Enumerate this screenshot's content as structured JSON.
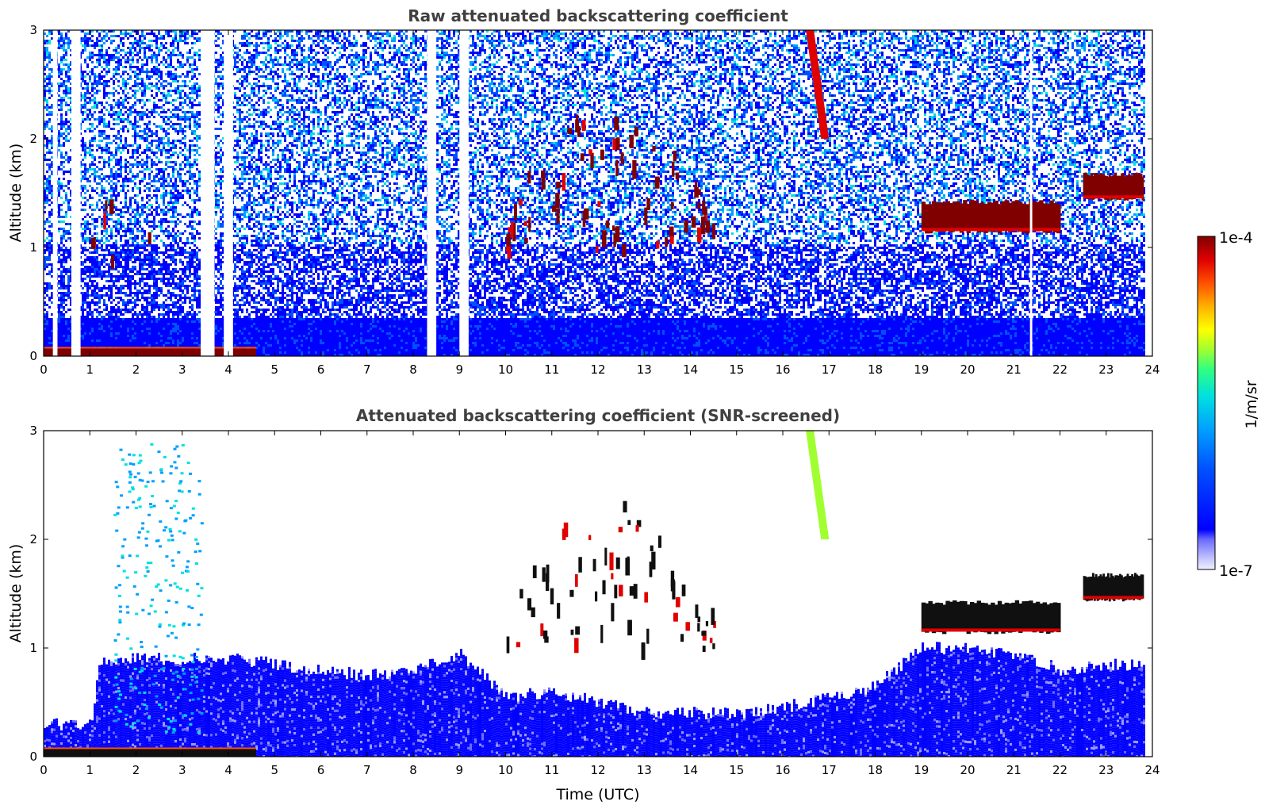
{
  "colors": {
    "colormap": [
      "#0000ff",
      "#0050ff",
      "#00a0ff",
      "#00e0e0",
      "#30ff80",
      "#a0ff30",
      "#ffff00",
      "#ffb000",
      "#ff5000",
      "#e00000",
      "#800000"
    ],
    "colormap_low_tint": [
      "#f0f0ff",
      "#c8c8ff",
      "#9a9aff",
      "#6a6aff"
    ],
    "cloud_core": "#101010",
    "axes": "#000000",
    "title_text": "#404040"
  },
  "colorbar": {
    "label": "1/m/sr",
    "max_label": "1e-4",
    "min_label": "1e-7",
    "scale": "log",
    "range": [
      1e-07,
      0.0001
    ]
  },
  "chart_data": [
    {
      "type": "heatmap",
      "title": "Raw attenuated backscattering coefficient",
      "xlabel": "",
      "ylabel": "Altitude (km)",
      "xlim": [
        0,
        24
      ],
      "ylim": [
        0,
        3
      ],
      "x_ticks": [
        "0",
        "1",
        "2",
        "3",
        "4",
        "5",
        "6",
        "7",
        "8",
        "9",
        "10",
        "11",
        "12",
        "13",
        "14",
        "15",
        "16",
        "17",
        "18",
        "19",
        "20",
        "21",
        "22",
        "23",
        "24"
      ],
      "y_ticks": [
        "0",
        "1",
        "2",
        "3"
      ],
      "data_end_time": 23.8,
      "grid": false,
      "background_noise_level": "high",
      "features": [
        {
          "kind": "surface_layer",
          "x": [
            0.0,
            4.6
          ],
          "y": [
            0.0,
            0.07
          ],
          "level": "high"
        },
        {
          "kind": "cloud",
          "x": [
            19.0,
            22.0
          ],
          "y": [
            1.15,
            1.42
          ],
          "level": "high"
        },
        {
          "kind": "cloud",
          "x": [
            22.5,
            23.8
          ],
          "y": [
            1.45,
            1.67
          ],
          "level": "high"
        },
        {
          "kind": "cloud_fragments",
          "x": [
            10.0,
            14.5
          ],
          "y": [
            1.0,
            2.4
          ],
          "level": "high"
        },
        {
          "kind": "fall_streak",
          "x": [
            16.5,
            17.0
          ],
          "y": [
            2.0,
            3.0
          ],
          "level": "high"
        },
        {
          "kind": "small_clouds",
          "x": [
            0.9,
            2.4
          ],
          "y": [
            0.9,
            1.6
          ],
          "level": "high"
        },
        {
          "kind": "no_signal_columns",
          "x": [
            [
              0.2,
              0.3
            ],
            [
              0.6,
              0.8
            ],
            [
              3.4,
              3.7
            ],
            [
              3.9,
              4.1
            ],
            [
              8.3,
              8.5
            ],
            [
              9.0,
              9.2
            ],
            [
              21.35,
              21.4
            ]
          ]
        }
      ]
    },
    {
      "type": "heatmap",
      "title": "Attenuated backscattering coefficient (SNR-screened)",
      "xlabel": "Time (UTC)",
      "ylabel": "Altitude (km)",
      "xlim": [
        0,
        24
      ],
      "ylim": [
        0,
        3
      ],
      "x_ticks": [
        "0",
        "1",
        "2",
        "3",
        "4",
        "5",
        "6",
        "7",
        "8",
        "9",
        "10",
        "11",
        "12",
        "13",
        "14",
        "15",
        "16",
        "17",
        "18",
        "19",
        "20",
        "21",
        "22",
        "23",
        "24"
      ],
      "y_ticks": [
        "0",
        "1",
        "2",
        "3"
      ],
      "data_end_time": 23.8,
      "grid": false,
      "background_noise_level": "screened",
      "boundary_layer_top_km": [
        [
          0,
          0.3
        ],
        [
          1,
          0.3
        ],
        [
          1.2,
          0.9
        ],
        [
          4.2,
          0.9
        ],
        [
          5,
          0.85
        ],
        [
          6,
          0.8
        ],
        [
          7,
          0.75
        ],
        [
          8,
          0.78
        ],
        [
          9,
          0.95
        ],
        [
          10,
          0.55
        ],
        [
          11,
          0.6
        ],
        [
          12,
          0.5
        ],
        [
          13,
          0.4
        ],
        [
          14,
          0.4
        ],
        [
          15,
          0.4
        ],
        [
          16,
          0.45
        ],
        [
          17,
          0.55
        ],
        [
          18,
          0.65
        ],
        [
          19,
          1.0
        ],
        [
          20,
          1.0
        ],
        [
          21,
          0.95
        ],
        [
          22,
          0.8
        ],
        [
          23,
          0.85
        ],
        [
          23.8,
          0.85
        ]
      ],
      "features": [
        {
          "kind": "surface_layer",
          "x": [
            0.0,
            4.6
          ],
          "y": [
            0.0,
            0.07
          ],
          "level": "saturated"
        },
        {
          "kind": "cloud",
          "x": [
            19.0,
            22.0
          ],
          "y": [
            1.15,
            1.42
          ],
          "level": "saturated"
        },
        {
          "kind": "cloud",
          "x": [
            22.5,
            23.8
          ],
          "y": [
            1.45,
            1.67
          ],
          "level": "saturated"
        },
        {
          "kind": "cloud_fragments",
          "x": [
            10.0,
            14.5
          ],
          "y": [
            1.0,
            2.4
          ],
          "level": "saturated"
        },
        {
          "kind": "fall_streak",
          "x": [
            16.5,
            17.0
          ],
          "y": [
            2.0,
            3.0
          ],
          "level": "high"
        },
        {
          "kind": "aerosol_plumes",
          "x": [
            1.5,
            3.4
          ],
          "y": [
            0.2,
            2.9
          ],
          "level": "mid"
        }
      ]
    }
  ]
}
